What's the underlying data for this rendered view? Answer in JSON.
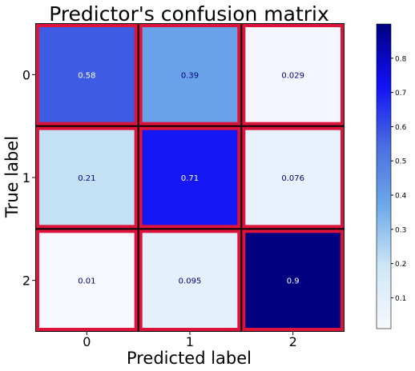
{
  "chart_data": {
    "type": "heatmap",
    "title": "Predictor's confusion matrix",
    "xlabel": "Predicted label",
    "ylabel": "True label",
    "x_categories": [
      "0",
      "1",
      "2"
    ],
    "y_categories": [
      "0",
      "1",
      "2"
    ],
    "values": [
      [
        0.58,
        0.39,
        0.029
      ],
      [
        0.21,
        0.71,
        0.076
      ],
      [
        0.01,
        0.095,
        0.9
      ]
    ],
    "cell_labels": [
      [
        "0.58",
        "0.39",
        "0.029"
      ],
      [
        "0.21",
        "0.71",
        "0.076"
      ],
      [
        "0.01",
        "0.095",
        "0.9"
      ]
    ],
    "colorbar": {
      "range": [
        0.01,
        0.9
      ],
      "ticks": [
        0.1,
        0.2,
        0.3,
        0.4,
        0.5,
        0.6,
        0.7,
        0.8
      ],
      "tick_labels": [
        "0.1",
        "0.2",
        "0.3",
        "0.4",
        "0.5",
        "0.6",
        "0.7",
        "0.8"
      ]
    },
    "colormap": [
      "#f7f8ff",
      "#cfe8f6",
      "#6eaae9",
      "#4a6ee0",
      "#1010f5",
      "#000080"
    ],
    "cell_border_color": "#dc143c",
    "grid_gap_color": "#000000",
    "text_dark": "#000080",
    "text_light": "#ffffff"
  }
}
